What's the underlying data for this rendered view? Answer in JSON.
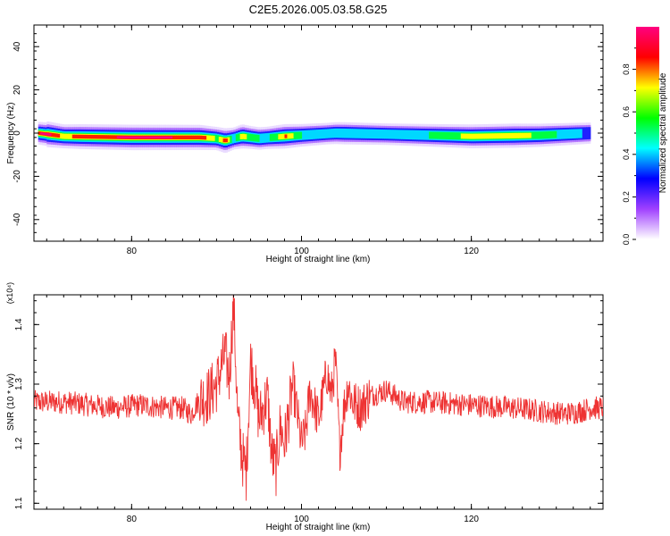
{
  "title": "C2E5.2026.005.03.58.G25",
  "chart_data": [
    {
      "type": "heatmap",
      "xlabel": "Height of straight line (km)",
      "ylabel": "Frequency (Hz)",
      "xlim": [
        68.5,
        135.5
      ],
      "ylim": [
        -50,
        50
      ],
      "xticks": [
        80,
        100,
        120
      ],
      "yticks": [
        40,
        20,
        0,
        -20,
        -40
      ],
      "grid": false,
      "ridge_frequency_hz": [
        {
          "x": 69,
          "f": 0
        },
        {
          "x": 72,
          "f": -1.5
        },
        {
          "x": 80,
          "f": -2
        },
        {
          "x": 88,
          "f": -2
        },
        {
          "x": 90,
          "f": -2.5
        },
        {
          "x": 91,
          "f": -3.5
        },
        {
          "x": 92,
          "f": -2.5
        },
        {
          "x": 93,
          "f": -1.5
        },
        {
          "x": 95,
          "f": -2.5
        },
        {
          "x": 98,
          "f": -1.5
        },
        {
          "x": 104,
          "f": 0
        },
        {
          "x": 110,
          "f": -0.5
        },
        {
          "x": 120,
          "f": -1.5
        },
        {
          "x": 128,
          "f": -1
        },
        {
          "x": 134,
          "f": 0
        }
      ],
      "ridge_amplitude": [
        {
          "x": 69,
          "a": 0.9
        },
        {
          "x": 70,
          "a": 1.0
        },
        {
          "x": 72,
          "a": 0.7
        },
        {
          "x": 74,
          "a": 0.85
        },
        {
          "x": 80,
          "a": 0.95
        },
        {
          "x": 88,
          "a": 0.9
        },
        {
          "x": 90,
          "a": 0.6
        },
        {
          "x": 91,
          "a": 0.85
        },
        {
          "x": 92,
          "a": 0.4
        },
        {
          "x": 93,
          "a": 0.75
        },
        {
          "x": 94,
          "a": 0.55
        },
        {
          "x": 96,
          "a": 0.45
        },
        {
          "x": 98,
          "a": 0.8
        },
        {
          "x": 100,
          "a": 0.5
        },
        {
          "x": 103,
          "a": 0.35
        },
        {
          "x": 105,
          "a": 0.45
        },
        {
          "x": 110,
          "a": 0.35
        },
        {
          "x": 115,
          "a": 0.5
        },
        {
          "x": 120,
          "a": 0.7
        },
        {
          "x": 125,
          "a": 0.75
        },
        {
          "x": 130,
          "a": 0.5
        },
        {
          "x": 133,
          "a": 0.35
        },
        {
          "x": 134,
          "a": 0.3
        }
      ],
      "colorbar": {
        "label": "Normalized spectral amplitude",
        "range": [
          0,
          1
        ],
        "ticks": [
          "0.0",
          "0.2",
          "0.4",
          "0.6",
          "0.8"
        ],
        "colors": [
          "#ffffff",
          "#a040ff",
          "#0000ff",
          "#00ffff",
          "#00ff00",
          "#ffff00",
          "#ff0000",
          "#ff0080"
        ]
      }
    },
    {
      "type": "line",
      "xlabel": "Height of straight line (km)",
      "ylabel": "SNR (10 * v/v)",
      "exponent_label": "(x10⁴)",
      "xlim": [
        68.5,
        135.5
      ],
      "ylim": [
        1.09,
        1.45
      ],
      "xticks": [
        80,
        100,
        120
      ],
      "yticks": [
        "1.1",
        "1.2",
        "1.3",
        "1.4"
      ],
      "grid": false,
      "color": "#ee3333",
      "series": [
        {
          "x": [
            69,
            72,
            75,
            78,
            81,
            84,
            86,
            87,
            88,
            89,
            90,
            91,
            91.5,
            92,
            92.5,
            93,
            93.5,
            94,
            94.5,
            95,
            96,
            96.5,
            97,
            97.5,
            98,
            99,
            100,
            100.5,
            101,
            102,
            103,
            103.5,
            104,
            104.5,
            105,
            105.5,
            106,
            107,
            108,
            110,
            112,
            115,
            120,
            125,
            128,
            131,
            133,
            134,
            135.5
          ],
          "y": [
            1.27,
            1.27,
            1.265,
            1.26,
            1.265,
            1.26,
            1.26,
            1.25,
            1.275,
            1.28,
            1.3,
            1.35,
            1.31,
            1.44,
            1.24,
            1.18,
            1.15,
            1.34,
            1.3,
            1.24,
            1.28,
            1.18,
            1.16,
            1.23,
            1.2,
            1.3,
            1.2,
            1.22,
            1.29,
            1.24,
            1.32,
            1.28,
            1.34,
            1.19,
            1.26,
            1.3,
            1.27,
            1.26,
            1.28,
            1.29,
            1.27,
            1.27,
            1.265,
            1.26,
            1.255,
            1.25,
            1.255,
            1.26,
            1.26
          ]
        }
      ]
    }
  ]
}
